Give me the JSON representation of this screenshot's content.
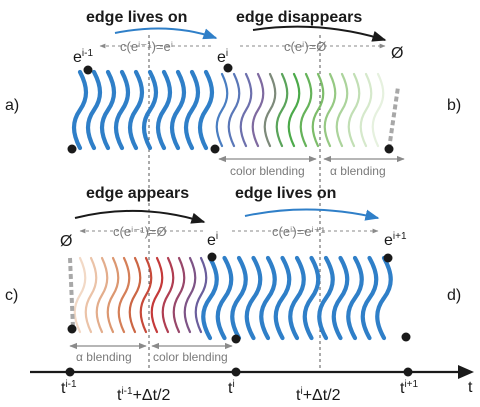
{
  "panels": {
    "a": {
      "label": "a)",
      "caption": "edge lives on",
      "relation": "c(eⁱ⁻¹)=eⁱ"
    },
    "b": {
      "label": "b)",
      "caption": "edge disappears",
      "relation": "c(eⁱ)=Ø",
      "blend_color": "color blending",
      "blend_alpha": "α blending"
    },
    "c": {
      "label": "c)",
      "caption": "edge appears",
      "relation": "c(eⁱ⁻¹)=Ø",
      "blend_alpha": "α blending",
      "blend_color": "color blending"
    },
    "d": {
      "label": "d)",
      "caption": "edge lives on",
      "relation": "c(eⁱ)=eⁱ⁺¹"
    }
  },
  "nodes": {
    "e_prev": {
      "base": "e",
      "sup": "i-1"
    },
    "e_i_top": {
      "base": "e",
      "sup": "i"
    },
    "empty_top": "Ø",
    "empty_bottom": "Ø",
    "e_i_bottom": {
      "base": "e",
      "sup": "i"
    },
    "e_next": {
      "base": "e",
      "sup": "i+1"
    }
  },
  "timeline": {
    "axis_label": "t",
    "ticks": [
      {
        "base": "t",
        "sup": "i-1",
        "suffix": ""
      },
      {
        "base": "t",
        "sup": "i-1",
        "suffix": "+Δt/2"
      },
      {
        "base": "t",
        "sup": "i",
        "suffix": ""
      },
      {
        "base": "t",
        "sup": "i",
        "suffix": "+Δt/2"
      },
      {
        "base": "t",
        "sup": "i+1",
        "suffix": ""
      }
    ]
  },
  "colors": {
    "blue": "#2f7fc8",
    "black": "#1a1a1a",
    "gray": "#7a7a7a",
    "light_gray": "#a8a8a8"
  }
}
